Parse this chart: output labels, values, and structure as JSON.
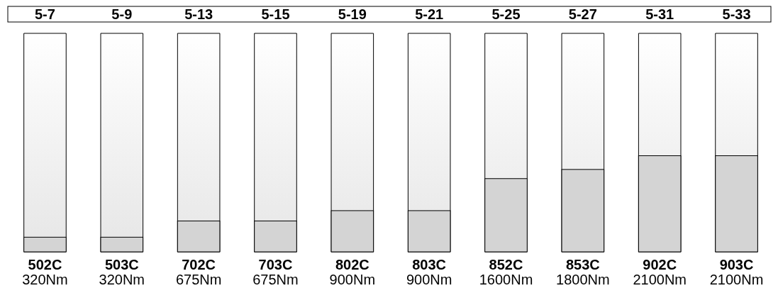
{
  "chart_data": {
    "type": "bar",
    "categories": [
      "5-7",
      "5-9",
      "5-13",
      "5-15",
      "5-19",
      "5-21",
      "5-25",
      "5-27",
      "5-31",
      "5-33"
    ],
    "values": [
      320,
      320,
      675,
      675,
      900,
      900,
      1600,
      1800,
      2100,
      2100
    ],
    "value_labels": [
      "320Nm",
      "320Nm",
      "675Nm",
      "675Nm",
      "900Nm",
      "900Nm",
      "1600Nm",
      "1800Nm",
      "2100Nm",
      "2100Nm"
    ],
    "color": "#d4d4d4",
    "annotations": [
      "502C",
      "503C",
      "702C",
      "703C",
      "802C",
      "803C",
      "852C",
      "853C",
      "902C",
      "903C"
    ]
  }
}
